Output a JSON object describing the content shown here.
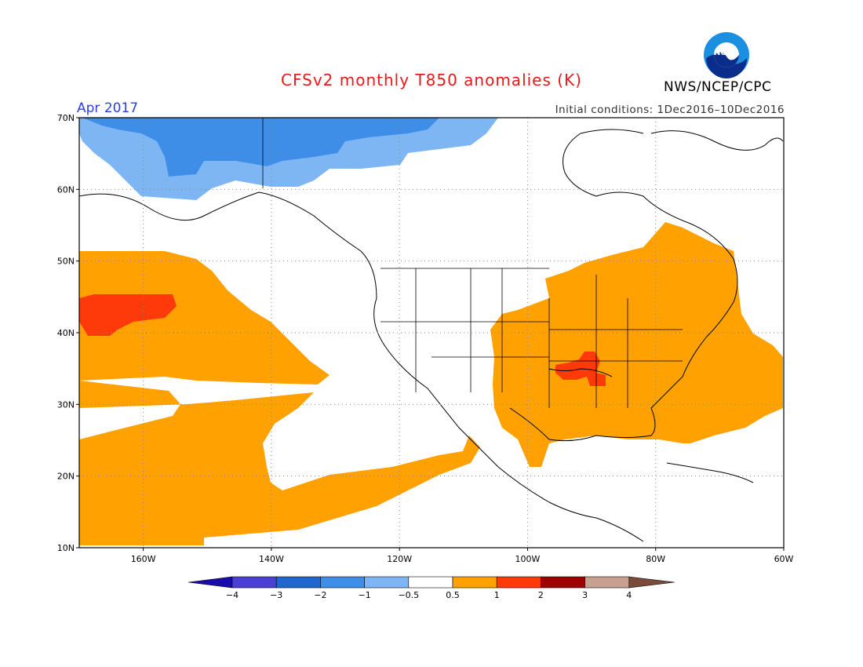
{
  "header": {
    "title": "CFSv2 monthly T850 anomalies (K)",
    "month": "Apr 2017",
    "initial_conditions": "Initial conditions: 1Dec2016–10Dec2016",
    "agency": "NWS/NCEP/CPC",
    "logo_text": "NOAA"
  },
  "map": {
    "lat_labels": [
      "70N",
      "60N",
      "50N",
      "40N",
      "30N",
      "20N",
      "10N"
    ],
    "lon_labels": [
      "160W",
      "140W",
      "120W",
      "100W",
      "80W",
      "60W"
    ],
    "lat_range": [
      10,
      70
    ],
    "lon_range": [
      -170,
      -60
    ]
  },
  "colorbar": {
    "labels": [
      "-4",
      "-3",
      "-2",
      "-1",
      "-0.5",
      "0.5",
      "1",
      "2",
      "3",
      "4"
    ],
    "colors": {
      "below": "#1a0ca8",
      "lt_-3": "#4b3fd8",
      "m3_m2": "#1f66d0",
      "m2_m1": "#3e8ee8",
      "m1_m05": "#7db6f3",
      "neutral": "#ffffff",
      "p05_1": "#ffa100",
      "p1_2": "#ff3a0a",
      "p2_3": "#a00000",
      "p3_4": "#c8a090",
      "above": "#7a4a3a"
    }
  },
  "colors": {
    "orange": "#ffa100",
    "red": "#ff3a0a",
    "blue_dark": "#3e8ee8",
    "blue_light": "#7db6f3"
  }
}
